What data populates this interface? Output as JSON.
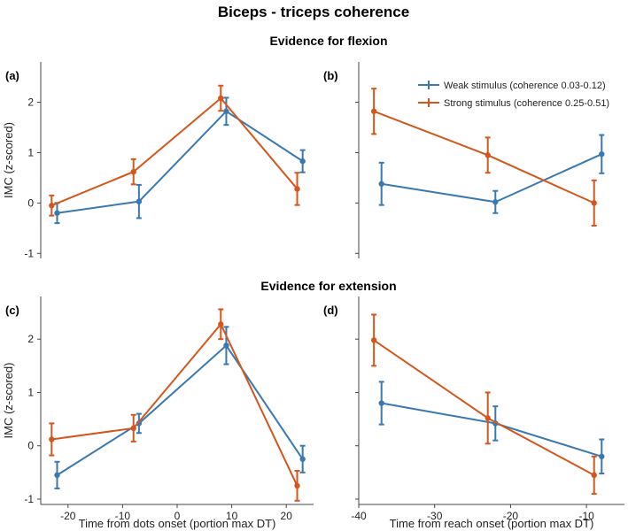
{
  "figure_title": "Biceps - triceps coherence",
  "section_titles": [
    "Evidence for flexion",
    "Evidence for extension"
  ],
  "colors": {
    "weak": "#3a78b0",
    "strong": "#d4561c"
  },
  "legend": [
    {
      "key": "weak",
      "label": "Weak stimulus (coherence 0.03-0.12)"
    },
    {
      "key": "strong",
      "label": "Strong stimulus (coherence 0.25-0.51)"
    }
  ],
  "chart_data": [
    {
      "panel": "(a)",
      "type": "line",
      "xlabel": "",
      "ylabel": "IMC (z-scored)",
      "xlim": [
        -25,
        25
      ],
      "ylim": [
        -1.1,
        2.8
      ],
      "xticks": [],
      "yticks": [
        -1,
        0,
        1,
        2
      ],
      "show_ytick_labels": true,
      "series": [
        {
          "name": "Weak stimulus (coherence 0.03-0.12)",
          "key": "weak",
          "x": [
            -22,
            -7,
            9,
            23
          ],
          "y": [
            -0.2,
            0.03,
            1.82,
            0.83
          ],
          "err": [
            0.2,
            0.33,
            0.27,
            0.22
          ]
        },
        {
          "name": "Strong stimulus (coherence 0.25-0.51)",
          "key": "strong",
          "x": [
            -23,
            -8,
            8,
            22
          ],
          "y": [
            -0.05,
            0.62,
            2.08,
            0.28
          ],
          "err": [
            0.2,
            0.25,
            0.25,
            0.32
          ]
        }
      ]
    },
    {
      "panel": "(b)",
      "type": "line",
      "xlabel": "",
      "ylabel": "",
      "xlim": [
        -40,
        -5
      ],
      "ylim": [
        -1.1,
        2.8
      ],
      "xticks": [],
      "yticks": [
        -1,
        0,
        1,
        2
      ],
      "show_ytick_labels": false,
      "series": [
        {
          "name": "Weak stimulus (coherence 0.03-0.12)",
          "key": "weak",
          "x": [
            -37,
            -22,
            -8
          ],
          "y": [
            0.38,
            0.02,
            0.97
          ],
          "err": [
            0.42,
            0.22,
            0.38
          ]
        },
        {
          "name": "Strong stimulus (coherence 0.25-0.51)",
          "key": "strong",
          "x": [
            -38,
            -23,
            -9
          ],
          "y": [
            1.82,
            0.95,
            0.0
          ],
          "err": [
            0.45,
            0.35,
            0.45
          ]
        }
      ]
    },
    {
      "panel": "(c)",
      "type": "line",
      "xlabel": "Time from dots onset (portion max DT)",
      "ylabel": "IMC (z-scored)",
      "xlim": [
        -25,
        25
      ],
      "ylim": [
        -1.1,
        2.8
      ],
      "xticks": [
        -20,
        -10,
        0,
        10,
        20
      ],
      "yticks": [
        -1,
        0,
        1,
        2
      ],
      "show_ytick_labels": true,
      "series": [
        {
          "name": "Weak stimulus (coherence 0.03-0.12)",
          "key": "weak",
          "x": [
            -22,
            -7,
            9,
            23
          ],
          "y": [
            -0.55,
            0.42,
            1.88,
            -0.25
          ],
          "err": [
            0.25,
            0.18,
            0.35,
            0.25
          ]
        },
        {
          "name": "Strong stimulus (coherence 0.25-0.51)",
          "key": "strong",
          "x": [
            -23,
            -8,
            8,
            22
          ],
          "y": [
            0.12,
            0.33,
            2.28,
            -0.75
          ],
          "err": [
            0.3,
            0.25,
            0.28,
            0.28
          ]
        }
      ]
    },
    {
      "panel": "(d)",
      "type": "line",
      "xlabel": "Time from reach onset (portion max DT)",
      "ylabel": "",
      "xlim": [
        -40,
        -5
      ],
      "ylim": [
        -1.1,
        2.8
      ],
      "xticks": [
        -40,
        -30,
        -20,
        -10
      ],
      "yticks": [
        -1,
        0,
        1,
        2
      ],
      "show_ytick_labels": false,
      "series": [
        {
          "name": "Weak stimulus (coherence 0.03-0.12)",
          "key": "weak",
          "x": [
            -37,
            -22,
            -8
          ],
          "y": [
            0.8,
            0.42,
            -0.2
          ],
          "err": [
            0.4,
            0.32,
            0.32
          ]
        },
        {
          "name": "Strong stimulus (coherence 0.25-0.51)",
          "key": "strong",
          "x": [
            -38,
            -23,
            -9
          ],
          "y": [
            1.98,
            0.52,
            -0.55
          ],
          "err": [
            0.48,
            0.48,
            0.35
          ]
        }
      ]
    }
  ]
}
